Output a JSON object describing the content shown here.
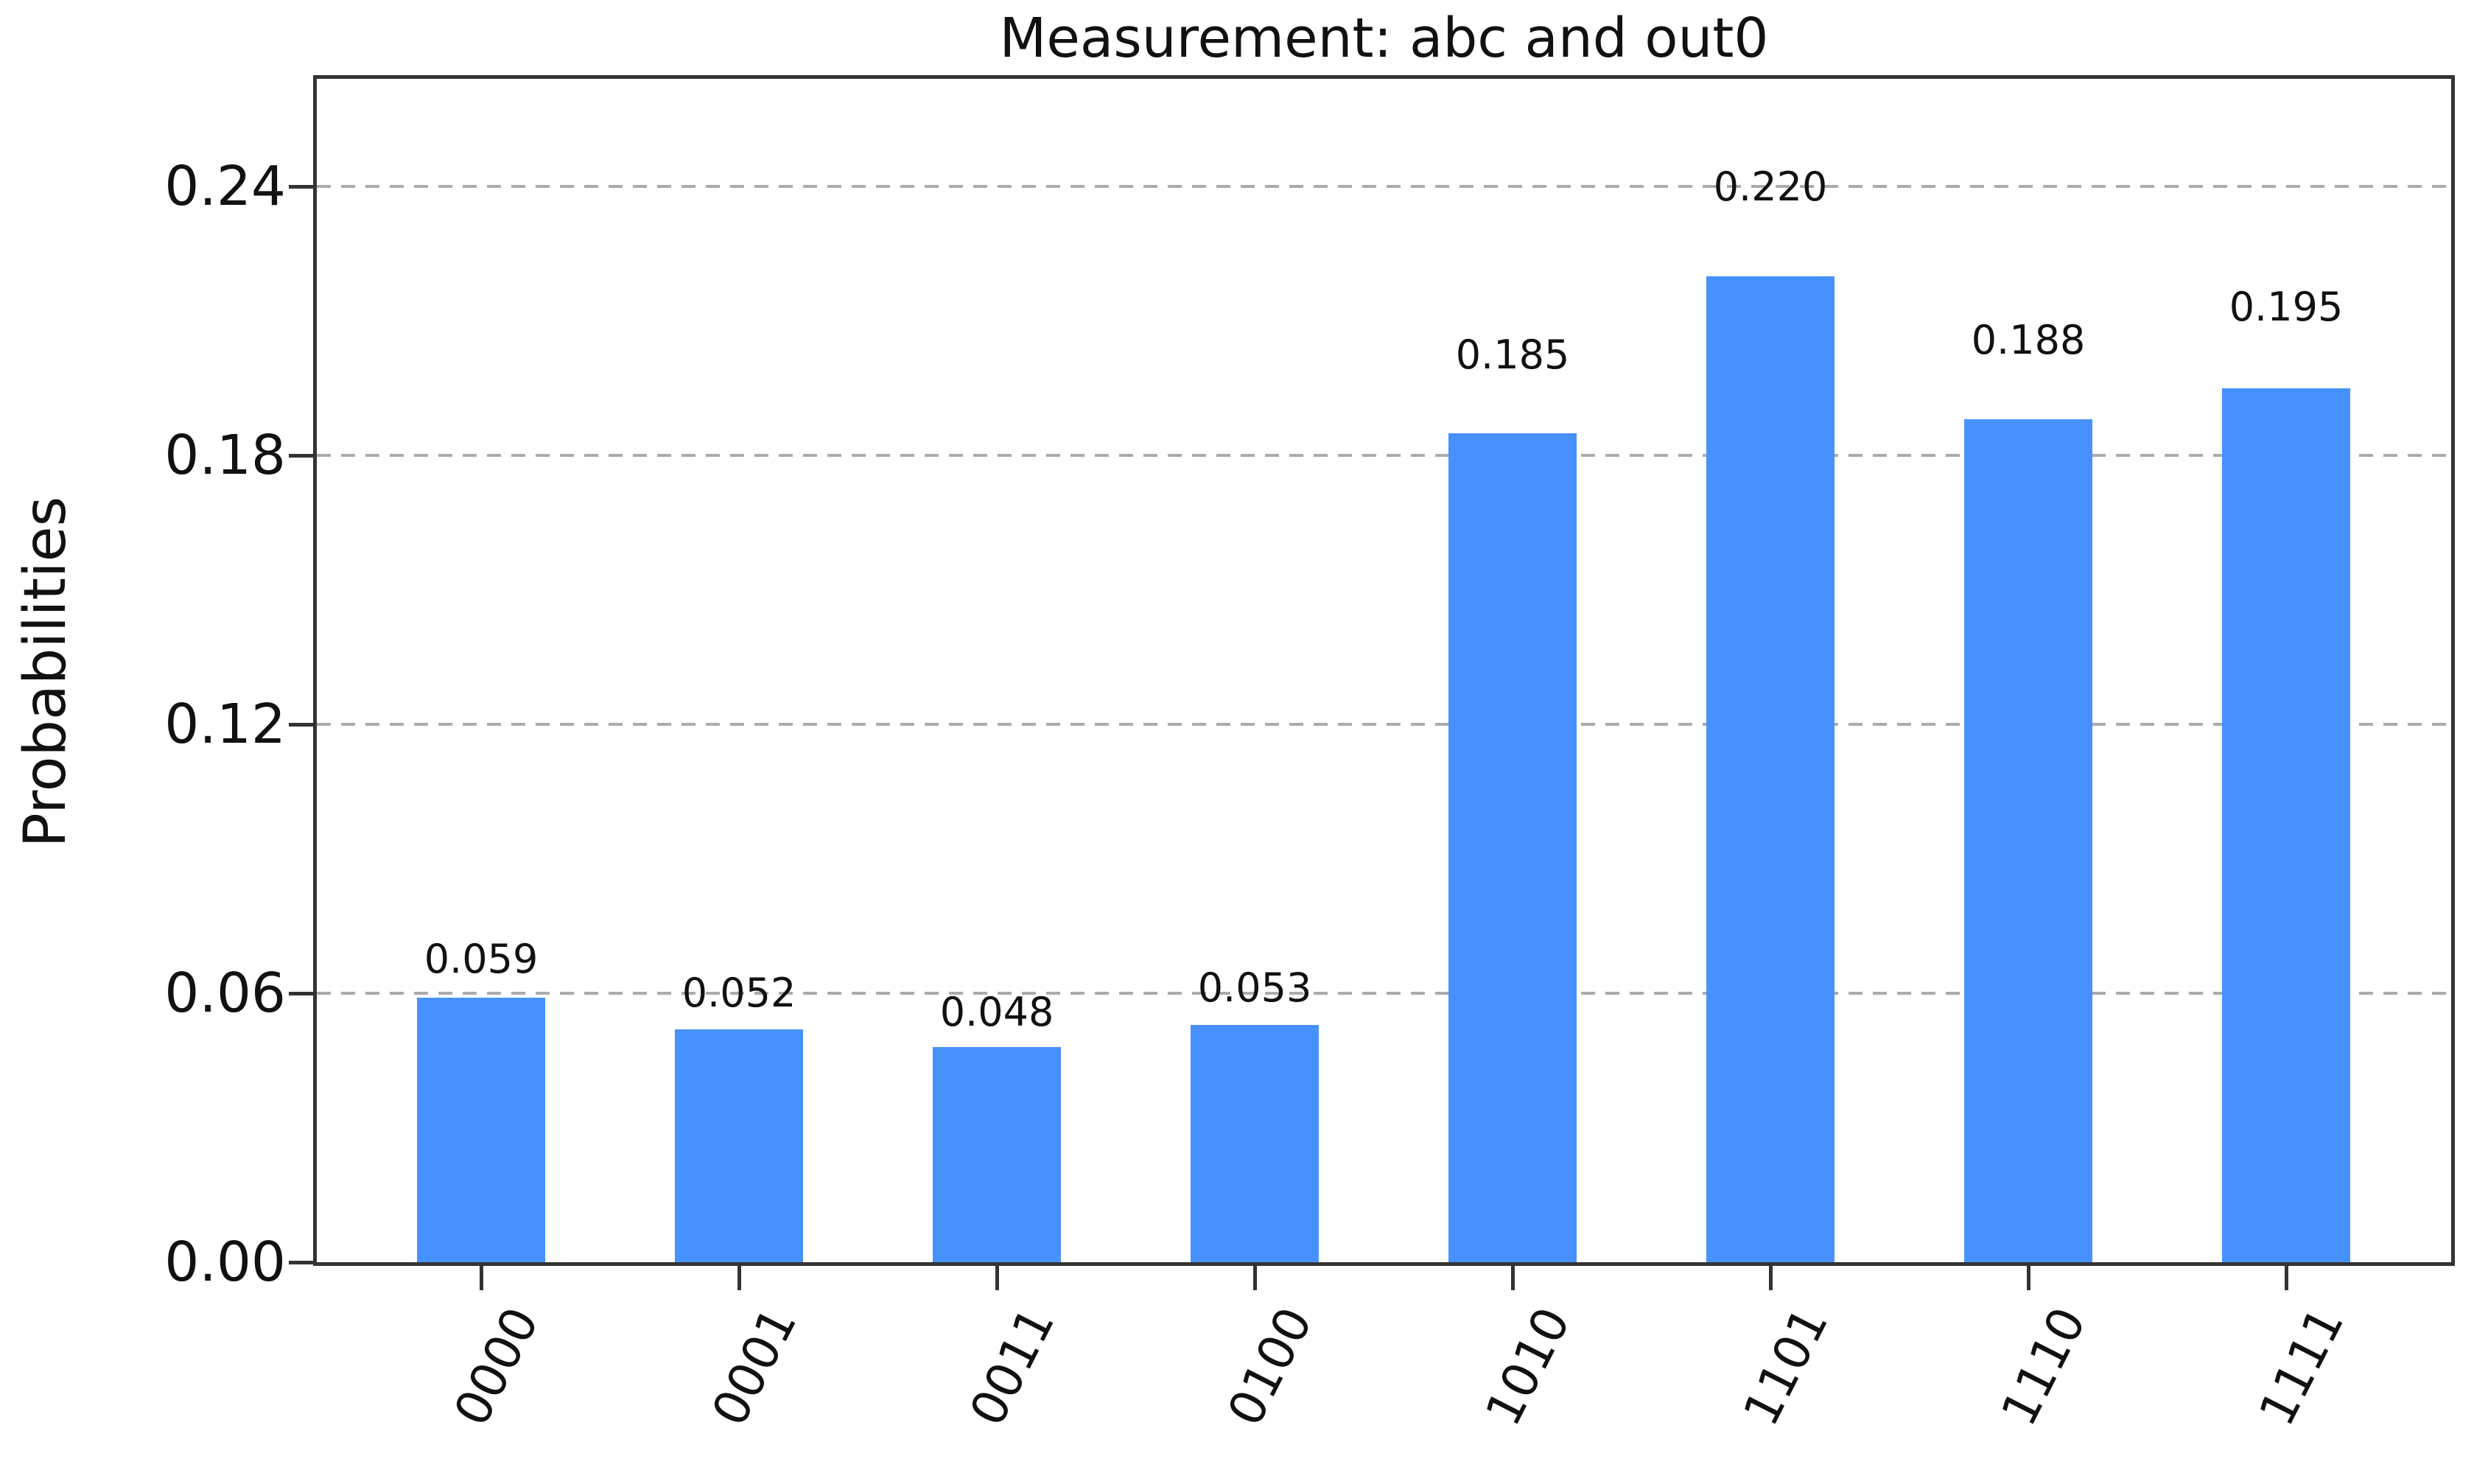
{
  "chart_data": {
    "type": "bar",
    "title": "Measurement: abc and out0",
    "xlabel": "",
    "ylabel": "Probabilities",
    "categories": [
      "0000",
      "0001",
      "0011",
      "0100",
      "1010",
      "1101",
      "1110",
      "1111"
    ],
    "values": [
      0.059,
      0.052,
      0.048,
      0.053,
      0.185,
      0.22,
      0.188,
      0.195
    ],
    "value_labels": [
      "0.059",
      "0.052",
      "0.048",
      "0.053",
      "0.185",
      "0.220",
      "0.188",
      "0.195"
    ],
    "y_ticks": [
      {
        "label": "0.00",
        "value": 0.0
      },
      {
        "label": "0.06",
        "value": 0.06
      },
      {
        "label": "0.12",
        "value": 0.12
      },
      {
        "label": "0.18",
        "value": 0.18
      },
      {
        "label": "0.24",
        "value": 0.24
      }
    ],
    "ylim": [
      0,
      0.264
    ],
    "grid": "horizontal-dashed",
    "legend": "none",
    "x_tick_rotation_deg": 63,
    "colors": {
      "bar": "#4791ff",
      "grid": "#ababab",
      "frame": "#333333",
      "text": "#111111",
      "background": "#ffffff"
    }
  }
}
